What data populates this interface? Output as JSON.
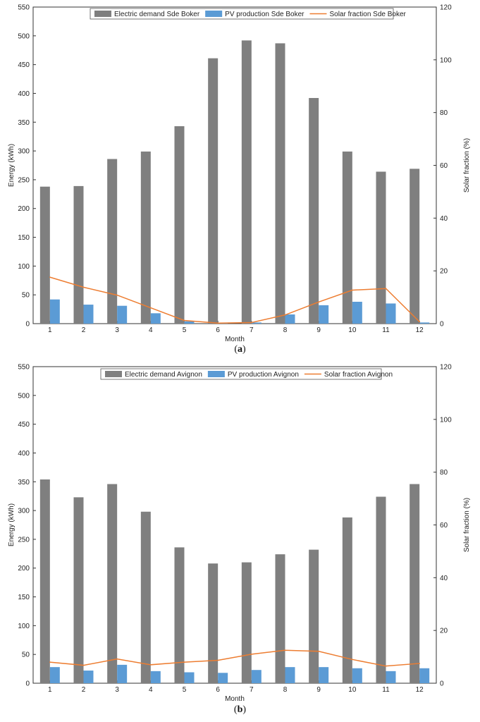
{
  "chart_data": [
    {
      "type": "bar",
      "caption": {
        "open": "(",
        "letter": "a",
        "close": ")"
      },
      "categories": [
        "1",
        "2",
        "3",
        "4",
        "5",
        "6",
        "7",
        "8",
        "9",
        "10",
        "11",
        "12"
      ],
      "xlabel": "Month",
      "ylabel": "Energy (kWh)",
      "y2label": "Solar fraction (%)",
      "ylim": [
        0,
        550
      ],
      "y2lim": [
        0,
        120
      ],
      "yticks": [
        0,
        50,
        100,
        150,
        200,
        250,
        300,
        350,
        400,
        450,
        500,
        550
      ],
      "y2ticks": [
        0,
        20,
        40,
        60,
        80,
        100,
        120
      ],
      "series": [
        {
          "name": "Electric demand Sde Boker",
          "kind": "bar",
          "color": "#7f7f7f",
          "values": [
            238,
            239,
            286,
            299,
            343,
            461,
            492,
            487,
            392,
            299,
            264,
            269
          ]
        },
        {
          "name": "PV production Sde Boker",
          "kind": "bar",
          "color": "#5b9bd5",
          "values": [
            42,
            33,
            31,
            18,
            4,
            1,
            2,
            16,
            32,
            38,
            35,
            2
          ]
        },
        {
          "name": "Solar fraction Sde Boker",
          "kind": "line",
          "axis": "right",
          "color": "#ed7d31",
          "values": [
            17.6,
            13.8,
            10.8,
            6.0,
            1.2,
            0.2,
            0.4,
            3.3,
            8.2,
            12.7,
            13.3,
            0.7
          ]
        }
      ]
    },
    {
      "type": "bar",
      "caption": {
        "open": "(",
        "letter": "b",
        "close": ")"
      },
      "categories": [
        "1",
        "2",
        "3",
        "4",
        "5",
        "6",
        "7",
        "8",
        "9",
        "10",
        "11",
        "12"
      ],
      "xlabel": "Month",
      "ylabel": "Energy (kWh)",
      "y2label": "Solar fraction (%)",
      "ylim": [
        0,
        550
      ],
      "y2lim": [
        0,
        120
      ],
      "yticks": [
        0,
        50,
        100,
        150,
        200,
        250,
        300,
        350,
        400,
        450,
        500,
        550
      ],
      "y2ticks": [
        0,
        20,
        40,
        60,
        80,
        100,
        120
      ],
      "series": [
        {
          "name": "Electric demand Avignon",
          "kind": "bar",
          "color": "#7f7f7f",
          "values": [
            354,
            323,
            346,
            298,
            236,
            208,
            210,
            224,
            232,
            288,
            324,
            346
          ]
        },
        {
          "name": "PV production Avignon",
          "kind": "bar",
          "color": "#5b9bd5",
          "values": [
            28,
            22,
            32,
            21,
            19,
            18,
            23,
            28,
            28,
            26,
            21,
            26
          ]
        },
        {
          "name": "Solar fraction Avignon",
          "kind": "line",
          "axis": "right",
          "color": "#ed7d31",
          "values": [
            8.0,
            6.8,
            9.2,
            7.0,
            8.0,
            8.7,
            11.0,
            12.5,
            12.1,
            9.0,
            6.5,
            7.5
          ]
        }
      ]
    }
  ]
}
